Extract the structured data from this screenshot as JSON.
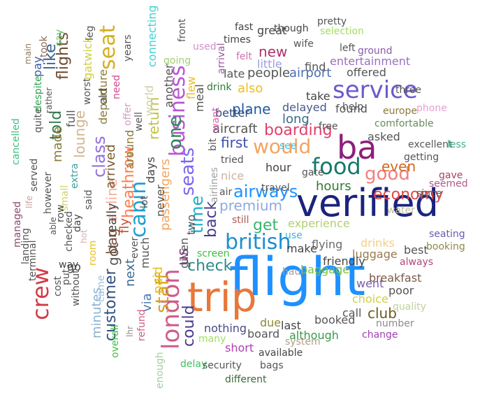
{
  "title": "",
  "words": [
    {
      "text": "flight",
      "color": "#1e90ff",
      "vertical": false
    },
    {
      "text": "verified",
      "color": "#1a237e",
      "vertical": false
    },
    {
      "text": "trip",
      "color": "#e8773a",
      "vertical": false
    },
    {
      "text": "ba",
      "color": "#8e1e7c",
      "vertical": false
    },
    {
      "text": "london",
      "color": "#d05a8a",
      "vertical": true
    },
    {
      "text": "service",
      "color": "#6a5acd",
      "vertical": false
    },
    {
      "text": "food",
      "color": "#137a6a",
      "vertical": false
    },
    {
      "text": "british",
      "color": "#1e8fd0",
      "vertical": false
    },
    {
      "text": "would",
      "color": "#f4a460",
      "vertical": false
    },
    {
      "text": "seat",
      "color": "#d4b020",
      "vertical": true
    },
    {
      "text": "good",
      "color": "#f08080",
      "vertical": false
    },
    {
      "text": "cabin",
      "color": "#20a0d0",
      "vertical": true
    },
    {
      "text": "business",
      "color": "#ba55d3",
      "vertical": true
    },
    {
      "text": "crew",
      "color": "#d43a48",
      "vertical": true
    },
    {
      "text": "one",
      "color": "#2e8b57",
      "vertical": true
    },
    {
      "text": "airways",
      "color": "#1e90ff",
      "vertical": false
    },
    {
      "text": "staff",
      "color": "#d4a017",
      "vertical": true
    },
    {
      "text": "seats",
      "color": "#7b68ee",
      "vertical": true
    },
    {
      "text": "time",
      "color": "#1ab0c8",
      "vertical": true
    },
    {
      "text": "class",
      "color": "#9370db",
      "vertical": true
    },
    {
      "text": "boarding",
      "color": "#e0406a",
      "vertical": false
    },
    {
      "text": "check",
      "color": "#2e8b8b",
      "vertical": false
    },
    {
      "text": "heathrow",
      "color": "#ff7f50",
      "vertical": true
    },
    {
      "text": "get",
      "color": "#3cb371",
      "vertical": false
    },
    {
      "text": "economy",
      "color": "#e04848",
      "vertical": false
    },
    {
      "text": "back",
      "color": "#483d8b",
      "vertical": true
    },
    {
      "text": "customer",
      "color": "#2f4f7f",
      "vertical": true
    },
    {
      "text": "could",
      "color": "#4b3a8b",
      "vertical": true
    },
    {
      "text": "us",
      "color": "#8b3a8b",
      "vertical": true
    },
    {
      "text": "plane",
      "color": "#1e5a9e",
      "vertical": false
    },
    {
      "text": "first",
      "color": "#3a4fb0",
      "vertical": false
    },
    {
      "text": "premium",
      "color": "#8fa8e0",
      "vertical": false
    },
    {
      "text": "club",
      "color": "#6b5a1e",
      "vertical": false
    },
    {
      "text": "hours",
      "color": "#2e7d32",
      "vertical": false
    },
    {
      "text": "even",
      "color": "#d2691e",
      "vertical": false
    },
    {
      "text": "lounge",
      "color": "#d2b48c",
      "vertical": true
    },
    {
      "text": "return",
      "color": "#c0c040",
      "vertical": true
    },
    {
      "text": "flights",
      "color": "#6b4a2e",
      "vertical": true
    },
    {
      "text": "like",
      "color": "#3a5f8b",
      "vertical": true
    },
    {
      "text": "new",
      "color": "#b0306a",
      "vertical": false
    },
    {
      "text": "airline",
      "color": "#f4b0a0",
      "vertical": true
    },
    {
      "text": "passengers",
      "color": "#f4a460",
      "vertical": true
    },
    {
      "text": "aircraft",
      "color": "#555555",
      "vertical": false
    },
    {
      "text": "airport",
      "color": "#4a6fb0",
      "vertical": false
    },
    {
      "text": "long",
      "color": "#3a6a8b",
      "vertical": false
    },
    {
      "text": "experience",
      "color": "#b0d070",
      "vertical": false
    },
    {
      "text": "drinks",
      "color": "#f4d080",
      "vertical": false
    },
    {
      "text": "baggage",
      "color": "#7ac040",
      "vertical": false
    },
    {
      "text": "luggage",
      "color": "#9a7a4a",
      "vertical": false
    },
    {
      "text": "entertainment",
      "color": "#9a70c0",
      "vertical": false
    },
    {
      "text": "people",
      "color": "#555555",
      "vertical": false
    },
    {
      "text": "delayed",
      "color": "#4a5a8b",
      "vertical": false
    },
    {
      "text": "flying",
      "color": "#6a6a6a",
      "vertical": false
    },
    {
      "text": "friendly",
      "color": "#444444",
      "vertical": false
    },
    {
      "text": "booked",
      "color": "#555555",
      "vertical": false
    },
    {
      "text": "breakfast",
      "color": "#7a5a4a",
      "vertical": false
    },
    {
      "text": "minutes",
      "color": "#8ab0d0",
      "vertical": true
    },
    {
      "text": "due",
      "color": "#8b8b2e",
      "vertical": false
    },
    {
      "text": "although",
      "color": "#3a9a4a",
      "vertical": false
    },
    {
      "text": "great",
      "color": "#444444",
      "vertical": false
    },
    {
      "text": "take",
      "color": "#444444",
      "vertical": false
    },
    {
      "text": "found",
      "color": "#555555",
      "vertical": false
    },
    {
      "text": "offered",
      "color": "#555555",
      "vertical": false
    },
    {
      "text": "comfortable",
      "color": "#6a8a5a",
      "vertical": false
    },
    {
      "text": "asked",
      "color": "#555555",
      "vertical": false
    },
    {
      "text": "excellent",
      "color": "#5a5a5a",
      "vertical": false
    },
    {
      "text": "better",
      "color": "#2e4a7a",
      "vertical": false
    },
    {
      "text": "hour",
      "color": "#444444",
      "vertical": false
    },
    {
      "text": "gate",
      "color": "#555555",
      "vertical": false
    },
    {
      "text": "also",
      "color": "#e8c020",
      "vertical": false
    },
    {
      "text": "little",
      "color": "#9aa0e0",
      "vertical": false
    },
    {
      "text": "late",
      "color": "#555555",
      "vertical": false
    },
    {
      "text": "find",
      "color": "#555555",
      "vertical": false
    },
    {
      "text": "make",
      "color": "#444444",
      "vertical": false
    },
    {
      "text": "go",
      "color": "#444444",
      "vertical": false
    },
    {
      "text": "way",
      "color": "#444444",
      "vertical": false
    },
    {
      "text": "told",
      "color": "#2e7a4a",
      "vertical": true
    },
    {
      "text": "made",
      "color": "#8b7a3a",
      "vertical": true
    },
    {
      "text": "full",
      "color": "#555555",
      "vertical": true
    },
    {
      "text": "really",
      "color": "#444444",
      "vertical": true
    },
    {
      "text": "got",
      "color": "#555555",
      "vertical": true
    },
    {
      "text": "bag",
      "color": "#7a4a2e",
      "vertical": true
    },
    {
      "text": "fly",
      "color": "#d04a2e",
      "vertical": true
    },
    {
      "text": "arrived",
      "color": "#7a5a2e",
      "vertical": true
    },
    {
      "text": "day",
      "color": "#444444",
      "vertical": true
    },
    {
      "text": "said",
      "color": "#555555",
      "vertical": true
    },
    {
      "text": "two",
      "color": "#555555",
      "vertical": true
    },
    {
      "text": "given",
      "color": "#555555",
      "vertical": true
    },
    {
      "text": "much",
      "color": "#555555",
      "vertical": true
    },
    {
      "text": "next",
      "color": "#3a6a8b",
      "vertical": true
    },
    {
      "text": "via",
      "color": "#4a7ab0",
      "vertical": true
    },
    {
      "text": "paid",
      "color": "#e8c020",
      "vertical": true
    },
    {
      "text": "never",
      "color": "#555555",
      "vertical": true
    },
    {
      "text": "days",
      "color": "#444444",
      "vertical": true
    },
    {
      "text": "lot",
      "color": "#555555",
      "vertical": true
    },
    {
      "text": "around",
      "color": "#8b7a3a",
      "vertical": true
    },
    {
      "text": "offer",
      "color": "#d0a0c0",
      "vertical": true
    },
    {
      "text": "well",
      "color": "#555555",
      "vertical": true
    },
    {
      "text": "world",
      "color": "#d0d0a0",
      "vertical": true
    },
    {
      "text": "another",
      "color": "#555555",
      "vertical": true
    },
    {
      "text": "meal",
      "color": "#555555",
      "vertical": true
    },
    {
      "text": "flew",
      "color": "#e8c020",
      "vertical": true
    },
    {
      "text": "going",
      "color": "#a0d070",
      "vertical": false
    },
    {
      "text": "front",
      "color": "#555555",
      "vertical": true
    },
    {
      "text": "connecting",
      "color": "#40d0d0",
      "vertical": true
    },
    {
      "text": "years",
      "color": "#555555",
      "vertical": true
    },
    {
      "text": "departure",
      "color": "#8b7a3a",
      "vertical": true
    },
    {
      "text": "need",
      "color": "#d04a8a",
      "vertical": true
    },
    {
      "text": "old",
      "color": "#555555",
      "vertical": true
    },
    {
      "text": "worst",
      "color": "#555555",
      "vertical": true
    },
    {
      "text": "gatwick",
      "color": "#d0d040",
      "vertical": true
    },
    {
      "text": "leg",
      "color": "#555555",
      "vertical": true
    },
    {
      "text": "pay",
      "color": "#3a5aa0",
      "vertical": true
    },
    {
      "text": "say",
      "color": "#60c060",
      "vertical": true
    },
    {
      "text": "took",
      "color": "#8b6a5a",
      "vertical": true
    },
    {
      "text": "main",
      "color": "#8b7a5a",
      "vertical": true
    },
    {
      "text": "despite",
      "color": "#30a050",
      "vertical": true
    },
    {
      "text": "rather",
      "color": "#555555",
      "vertical": true
    },
    {
      "text": "quite",
      "color": "#555555",
      "vertical": true
    },
    {
      "text": "cancelled",
      "color": "#40c080",
      "vertical": true
    },
    {
      "text": "served",
      "color": "#555555",
      "vertical": true
    },
    {
      "text": "extra",
      "color": "#40a0a0",
      "vertical": true
    },
    {
      "text": "small",
      "color": "#d0d070",
      "vertical": true
    },
    {
      "text": "however",
      "color": "#555555",
      "vertical": true
    },
    {
      "text": "row",
      "color": "#444444",
      "vertical": true
    },
    {
      "text": "checked",
      "color": "#555555",
      "vertical": true
    },
    {
      "text": "life",
      "color": "#d0a0a0",
      "vertical": true
    },
    {
      "text": "managed",
      "color": "#8b4a6a",
      "vertical": true
    },
    {
      "text": "landing",
      "color": "#555555",
      "vertical": true
    },
    {
      "text": "able",
      "color": "#555555",
      "vertical": true
    },
    {
      "text": "terminal",
      "color": "#555555",
      "vertical": true
    },
    {
      "text": "hot",
      "color": "#d0b0b0",
      "vertical": true
    },
    {
      "text": "room",
      "color": "#e8c020",
      "vertical": true
    },
    {
      "text": "put",
      "color": "#555555",
      "vertical": true
    },
    {
      "text": "cost",
      "color": "#555555",
      "vertical": true
    },
    {
      "text": "without",
      "color": "#555555",
      "vertical": true
    },
    {
      "text": "came",
      "color": "#a0c0e0",
      "vertical": true
    },
    {
      "text": "ever",
      "color": "#555555",
      "vertical": true
    },
    {
      "text": "refund",
      "color": "#d05a8a",
      "vertical": true
    },
    {
      "text": "overall",
      "color": "#40c040",
      "vertical": true
    },
    {
      "text": "lhr",
      "color": "#8b8b8b",
      "vertical": true
    },
    {
      "text": "enough",
      "color": "#a0d0a0",
      "vertical": true
    },
    {
      "text": "delay",
      "color": "#40c060",
      "vertical": false
    },
    {
      "text": "security",
      "color": "#555555",
      "vertical": false
    },
    {
      "text": "different",
      "color": "#3a6a3a",
      "vertical": false
    },
    {
      "text": "many",
      "color": "#a0e060",
      "vertical": false
    },
    {
      "text": "short",
      "color": "#b040b0",
      "vertical": false
    },
    {
      "text": "nothing",
      "color": "#4a4a8b",
      "vertical": false
    },
    {
      "text": "bags",
      "color": "#555555",
      "vertical": false
    },
    {
      "text": "available",
      "color": "#444444",
      "vertical": false
    },
    {
      "text": "system",
      "color": "#b0a080",
      "vertical": false
    },
    {
      "text": "board",
      "color": "#555555",
      "vertical": false
    },
    {
      "text": "last",
      "color": "#444444",
      "vertical": false
    },
    {
      "text": "call",
      "color": "#555555",
      "vertical": false
    },
    {
      "text": "change",
      "color": "#a040b0",
      "vertical": false
    },
    {
      "text": "number",
      "color": "#8b8b8b",
      "vertical": false
    },
    {
      "text": "quality",
      "color": "#c0d0a0",
      "vertical": false
    },
    {
      "text": "choice",
      "color": "#d0d040",
      "vertical": false
    },
    {
      "text": "poor",
      "color": "#555555",
      "vertical": false
    },
    {
      "text": "went",
      "color": "#7a5ab0",
      "vertical": false
    },
    {
      "text": "always",
      "color": "#b04a7a",
      "vertical": false
    },
    {
      "text": "best",
      "color": "#555555",
      "vertical": false
    },
    {
      "text": "booking",
      "color": "#8b8b4a",
      "vertical": false
    },
    {
      "text": "seating",
      "color": "#6a5ab0",
      "vertical": false
    },
    {
      "text": "water",
      "color": "#c0c0a0",
      "vertical": false
    },
    {
      "text": "since",
      "color": "#555555",
      "vertical": false
    },
    {
      "text": "seemed",
      "color": "#b05a8b",
      "vertical": false
    },
    {
      "text": "gave",
      "color": "#b03a6a",
      "vertical": false
    },
    {
      "text": "getting",
      "color": "#555555",
      "vertical": false
    },
    {
      "text": "less",
      "color": "#40b090",
      "vertical": false
    },
    {
      "text": "europe",
      "color": "#8b7a3a",
      "vertical": false
    },
    {
      "text": "phone",
      "color": "#e8a0d0",
      "vertical": false
    },
    {
      "text": "three",
      "color": "#555555",
      "vertical": false
    },
    {
      "text": "help",
      "color": "#555555",
      "vertical": false
    },
    {
      "text": "free",
      "color": "#555555",
      "vertical": false
    },
    {
      "text": "see",
      "color": "#40c0e0",
      "vertical": false
    },
    {
      "text": "tried",
      "color": "#555555",
      "vertical": false
    },
    {
      "text": "nice",
      "color": "#d0b0a0",
      "vertical": false
    },
    {
      "text": "air",
      "color": "#555555",
      "vertical": false
    },
    {
      "text": "travel",
      "color": "#555555",
      "vertical": false
    },
    {
      "text": "still",
      "color": "#b05a5a",
      "vertical": false
    },
    {
      "text": "use",
      "color": "#40b0e0",
      "vertical": false
    },
    {
      "text": "screen",
      "color": "#40c040",
      "vertical": false
    },
    {
      "text": "haul",
      "color": "#a0a0a0",
      "vertical": false
    },
    {
      "text": "drink",
      "color": "#2e7a3a",
      "vertical": false
    },
    {
      "text": "felt",
      "color": "#d070b0",
      "vertical": false
    },
    {
      "text": "arrival",
      "color": "#a05aa0",
      "vertical": true
    },
    {
      "text": "used",
      "color": "#d090d0",
      "vertical": false
    },
    {
      "text": "want",
      "color": "#e060b0",
      "vertical": true
    },
    {
      "text": "bit",
      "color": "#555555",
      "vertical": true
    },
    {
      "text": "airlines",
      "color": "#a0a0a0",
      "vertical": true
    },
    {
      "text": "fast",
      "color": "#444444",
      "vertical": false
    },
    {
      "text": "times",
      "color": "#444444",
      "vertical": false
    },
    {
      "text": "though",
      "color": "#444444",
      "vertical": false
    },
    {
      "text": "wife",
      "color": "#555555",
      "vertical": false
    },
    {
      "text": "pretty",
      "color": "#555555",
      "vertical": false
    },
    {
      "text": "selection",
      "color": "#a0e060",
      "vertical": false
    },
    {
      "text": "left",
      "color": "#555555",
      "vertical": false
    },
    {
      "text": "ground",
      "color": "#8b5ab0",
      "vertical": false
    }
  ]
}
